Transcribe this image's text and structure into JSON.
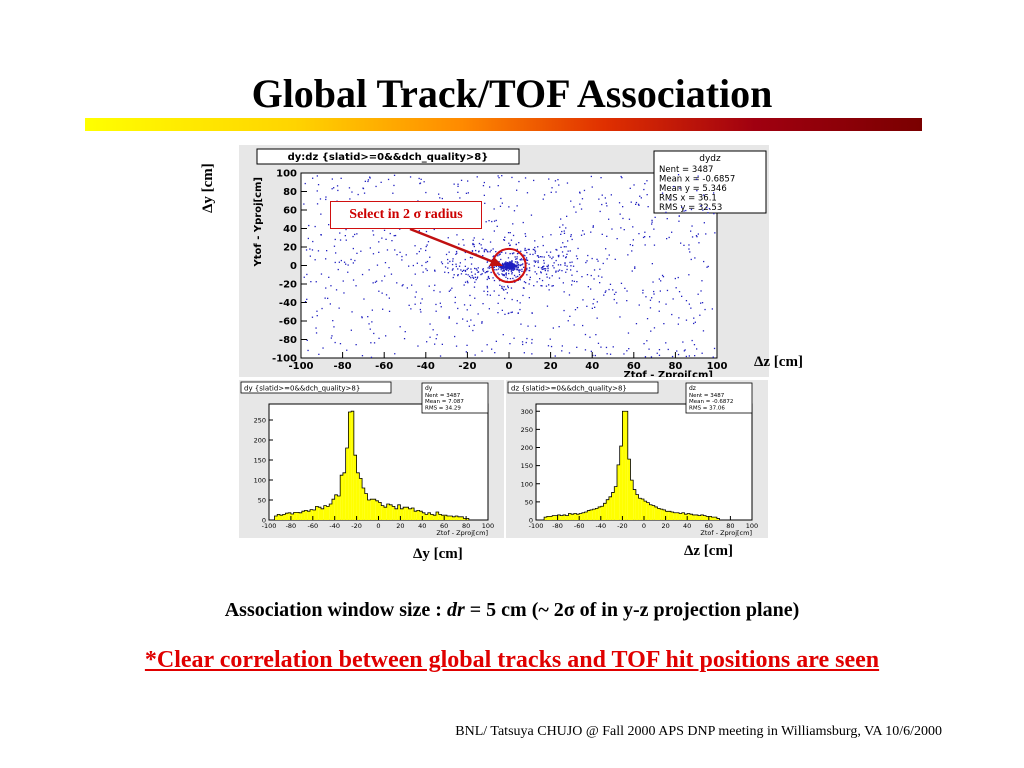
{
  "slide": {
    "title": "Global Track/TOF Association",
    "association_prefix": "Association window size : ",
    "association_var": "dr",
    "association_suffix": " = 5 cm (~ 2σ of in y-z projection plane)",
    "conclusion": "*Clear correlation between global tracks and TOF hit positions are seen",
    "footer": "BNL/ Tatsuya CHUJO @ Fall 2000 APS DNP meeting in Williamsburg, VA  10/6/2000",
    "annotation_dy_top": "Δy [cm]",
    "annotation_dz_right": "Δz [cm]",
    "annotation_dy_bottom": "Δy [cm]",
    "annotation_dz_bottom": "Δz [cm]",
    "select_label": "Select in 2 σ radius"
  },
  "colors": {
    "conclusion": "#e00000",
    "scatter_points": "#2020c0",
    "histogram_fill": "#ffff00",
    "select_marker": "#d01010"
  },
  "chart_data": [
    {
      "type": "scatter",
      "title": "dy:dz {slatid>=0&&dch_quality>8}",
      "xlabel": "Ztof - Zproj[cm]",
      "ylabel": "Ytof - Yproj[cm]",
      "xlim": [
        -100,
        100
      ],
      "ylim": [
        -100,
        100
      ],
      "xticks": [
        -100,
        -80,
        -60,
        -40,
        -20,
        0,
        20,
        40,
        60,
        80,
        100
      ],
      "yticks": [
        -100,
        -80,
        -60,
        -40,
        -20,
        0,
        20,
        40,
        60,
        80,
        100
      ],
      "stats": {
        "name": "dydz",
        "lines": [
          "Nent = 3487",
          "Mean x = -0.6857",
          "Mean y =  5.346",
          "RMS x  =   36.1",
          "RMS y  =  32.53"
        ]
      },
      "n_points": 3487,
      "mean": [
        -0.6857,
        5.346
      ],
      "rms": [
        36.1,
        32.53
      ],
      "select_center": [
        0,
        0
      ],
      "select_radius": 5
    },
    {
      "type": "bar",
      "title": "dy {slatid>=0&&dch_quality>8}",
      "xlabel": "Ztof - Zproj[cm]",
      "xlim": [
        -100,
        100
      ],
      "ylim": [
        0,
        290
      ],
      "xticks": [
        -100,
        -80,
        -60,
        -40,
        -20,
        0,
        20,
        40,
        60,
        80,
        100
      ],
      "yticks": [
        0,
        50,
        100,
        150,
        200,
        250
      ],
      "stats": {
        "name": "dy",
        "lines": [
          "Nent = 3487",
          "Mean =  7.087",
          "RMS  =  34.29"
        ]
      },
      "bin_width": 2.5,
      "bin_start": -100,
      "values": [
        0,
        0,
        10,
        14,
        12,
        14,
        17,
        18,
        15,
        19,
        19,
        18,
        22,
        24,
        22,
        26,
        25,
        34,
        32,
        28,
        36,
        34,
        40,
        52,
        63,
        60,
        112,
        118,
        180,
        270,
        272,
        162,
        118,
        104,
        80,
        66,
        50,
        52,
        52,
        48,
        44,
        36,
        32,
        40,
        38,
        34,
        28,
        38,
        28,
        32,
        32,
        28,
        30,
        22,
        24,
        22,
        18,
        14,
        18,
        14,
        12,
        20,
        14,
        12,
        12,
        10,
        10,
        8,
        10,
        8,
        8,
        4,
        4,
        0,
        0,
        0,
        0,
        0,
        0,
        0
      ]
    },
    {
      "type": "bar",
      "title": "dz {slatid>=0&&dch_quality>8}",
      "xlabel": "Ztof - Zproj[cm]",
      "xlim": [
        -100,
        100
      ],
      "ylim": [
        0,
        320
      ],
      "xticks": [
        -100,
        -80,
        -60,
        -40,
        -20,
        0,
        20,
        40,
        60,
        80,
        100
      ],
      "yticks": [
        0,
        50,
        100,
        150,
        200,
        250,
        300
      ],
      "stats": {
        "name": "dz",
        "lines": [
          "Nent = 3487",
          "Mean = -0.6872",
          "RMS  =  37.06"
        ]
      },
      "bin_width": 2.5,
      "bin_start": -100,
      "values": [
        0,
        0,
        0,
        8,
        10,
        10,
        12,
        12,
        14,
        12,
        14,
        12,
        18,
        16,
        18,
        16,
        18,
        20,
        22,
        26,
        28,
        30,
        32,
        36,
        38,
        46,
        56,
        64,
        76,
        92,
        152,
        204,
        300,
        300,
        168,
        110,
        84,
        70,
        60,
        58,
        52,
        48,
        42,
        40,
        36,
        32,
        30,
        28,
        24,
        24,
        22,
        20,
        20,
        18,
        20,
        16,
        18,
        16,
        14,
        14,
        12,
        14,
        12,
        10,
        10,
        8,
        8,
        4,
        0,
        0,
        0,
        0,
        0,
        0,
        0,
        0,
        0,
        0,
        0,
        0
      ]
    }
  ]
}
